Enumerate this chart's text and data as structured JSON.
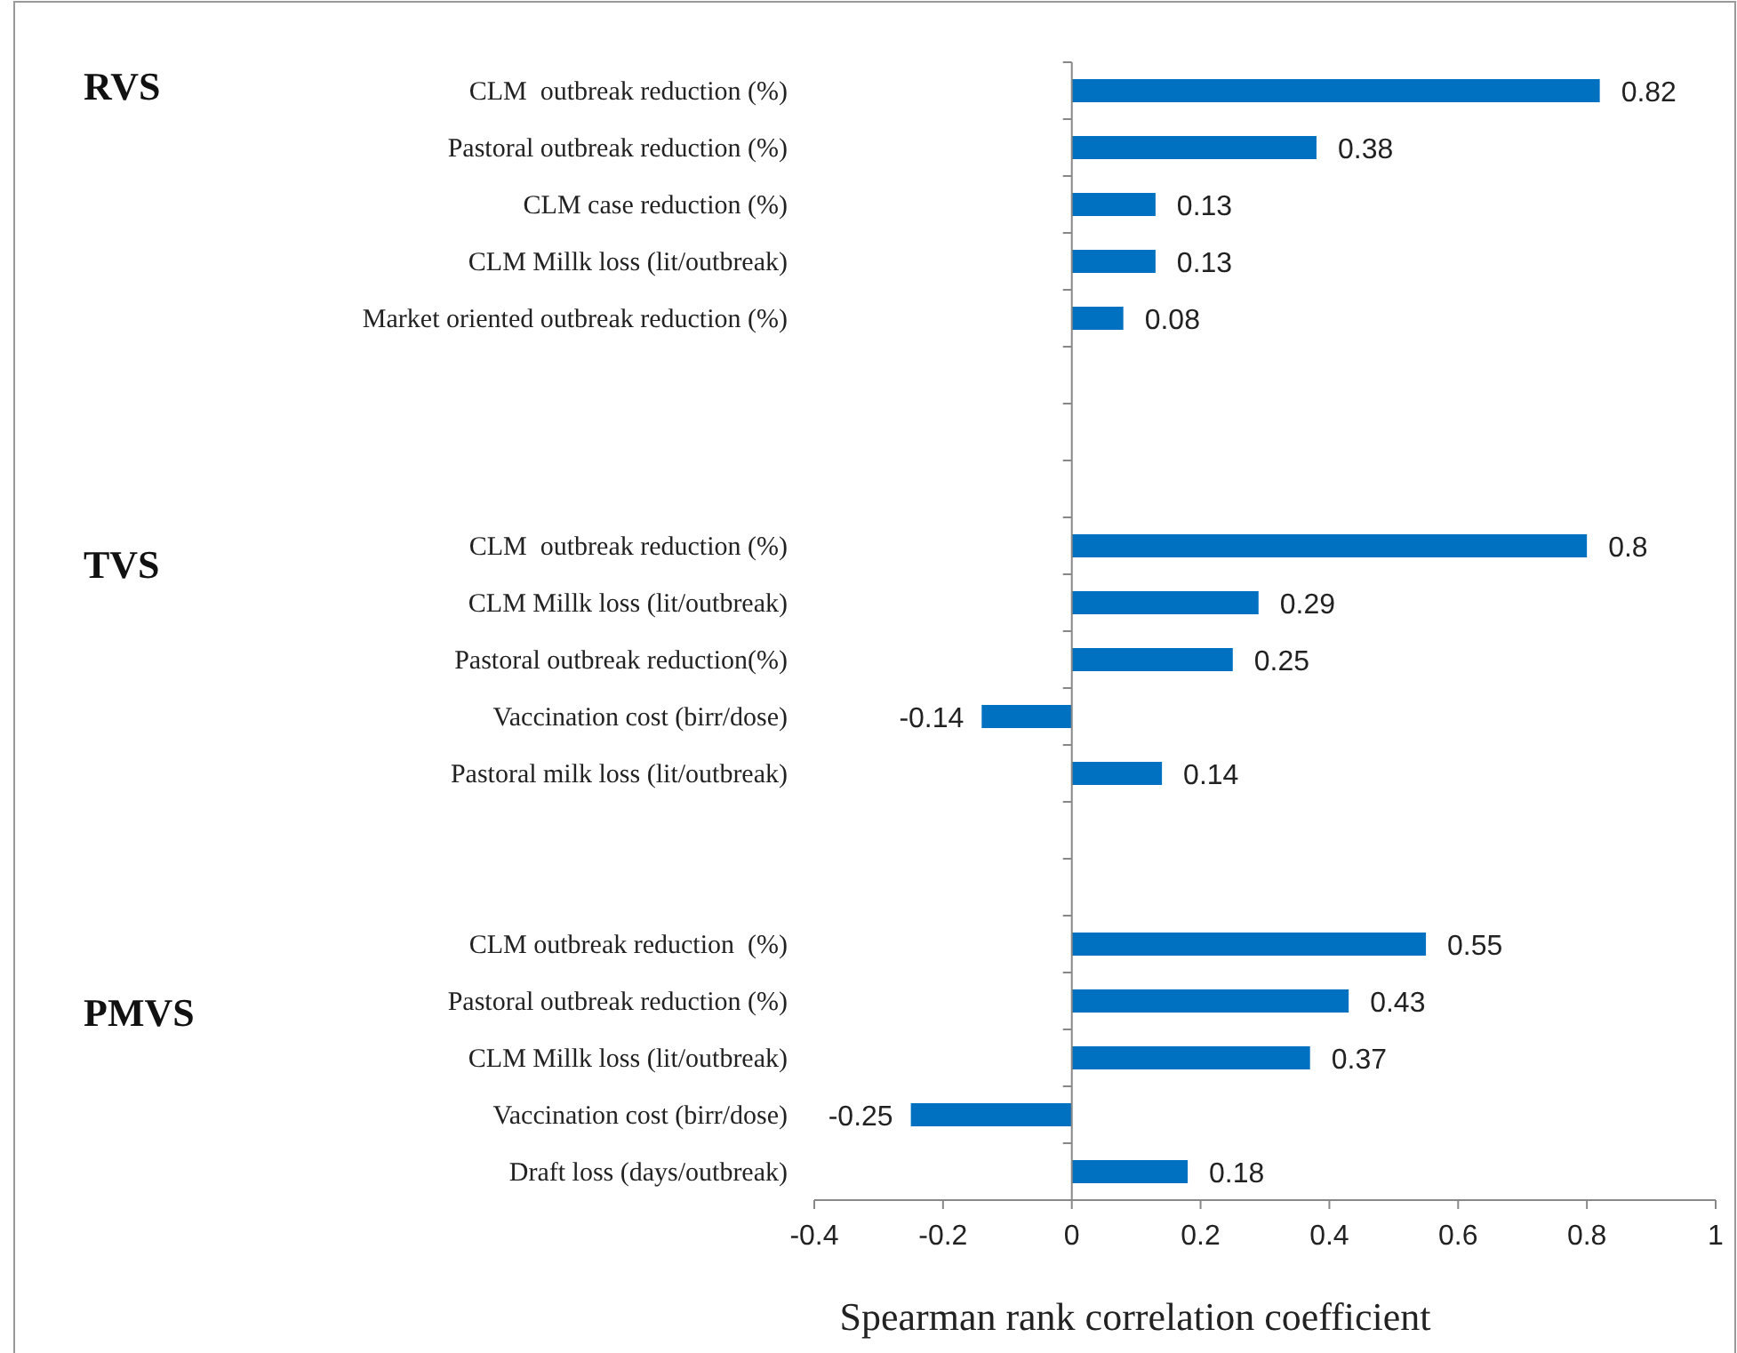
{
  "chart_data": {
    "type": "bar",
    "orientation": "horizontal",
    "xlabel": "Spearman rank correlation coefficient",
    "categories": [
      "CLM  outbreak reduction (%)",
      "Pastoral outbreak reduction (%)",
      "CLM case reduction (%)",
      "CLM Millk loss (lit/outbreak)",
      "Market oriented outbreak reduction (%)",
      null,
      null,
      null,
      "CLM  outbreak reduction (%)",
      "CLM Millk loss (lit/outbreak)",
      "Pastoral outbreak reduction(%)",
      "Vaccination cost (birr/dose)",
      "Pastoral milk loss (lit/outbreak)",
      null,
      null,
      "CLM outbreak reduction  (%)",
      "Pastoral outbreak reduction (%)",
      "CLM Millk loss (lit/outbreak)",
      "Vaccination cost (birr/dose)",
      "Draft loss (days/outbreak)"
    ],
    "values": [
      0.82,
      0.38,
      0.13,
      0.13,
      0.08,
      null,
      null,
      null,
      0.8,
      0.29,
      0.25,
      -0.14,
      0.14,
      null,
      null,
      0.55,
      0.43,
      0.37,
      -0.25,
      0.18
    ],
    "color": "#0070c0",
    "xlim": [
      -0.4,
      1
    ],
    "xticks": [
      -0.4,
      -0.2,
      0,
      0.2,
      0.4,
      0.6,
      0.8,
      1
    ],
    "data_labels": true,
    "annotations": [
      "RVS",
      "TVS",
      "PMVS"
    ]
  }
}
